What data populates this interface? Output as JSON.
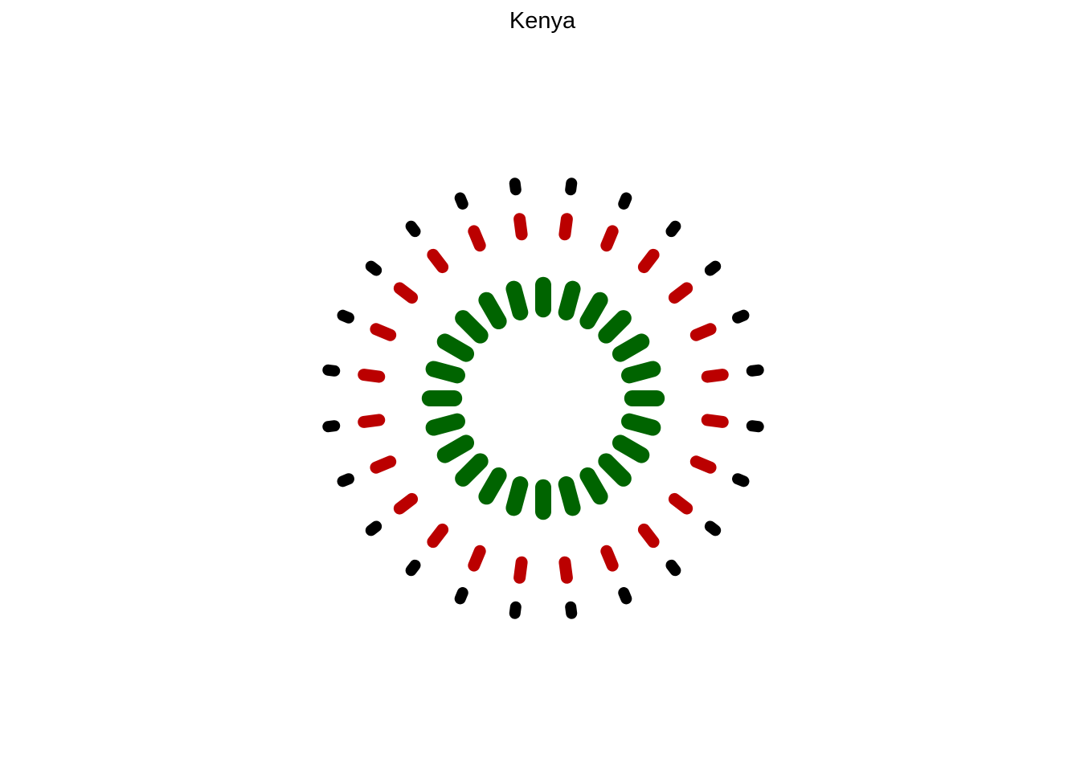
{
  "chart_data": {
    "type": "radial-segments",
    "title": "Kenya",
    "n_spokes": 24,
    "start_angle_deg": 0,
    "direction": "clockwise",
    "rings": [
      {
        "name": "inner",
        "color": "#006400",
        "inner": 0.36,
        "outer": 0.54,
        "offset_deg": 0,
        "values": [
          1,
          1,
          1,
          1,
          1,
          1,
          1,
          1,
          1,
          1,
          1,
          1,
          1,
          1,
          1,
          1,
          1,
          1,
          1,
          1,
          1,
          1,
          1,
          1
        ]
      },
      {
        "name": "middle",
        "color": "#bb0000",
        "inner": 0.7,
        "outer": 0.84,
        "offset_deg": 7.5,
        "values": [
          1,
          1,
          1,
          1,
          1,
          1,
          1,
          1,
          1,
          1,
          1,
          1,
          1,
          1,
          1,
          1,
          1,
          1,
          1,
          1,
          1,
          1,
          1,
          1
        ]
      },
      {
        "name": "outer",
        "color": "#000000",
        "inner": 0.9,
        "outer": 1.0,
        "offset_deg": 7.5,
        "values": [
          1,
          1,
          1,
          1,
          1,
          1,
          1,
          1,
          1,
          1,
          1,
          1,
          1,
          1,
          1,
          1,
          1,
          1,
          1,
          1,
          1,
          1,
          1,
          1
        ]
      }
    ],
    "grid": false,
    "axes": false,
    "legend": "none"
  }
}
